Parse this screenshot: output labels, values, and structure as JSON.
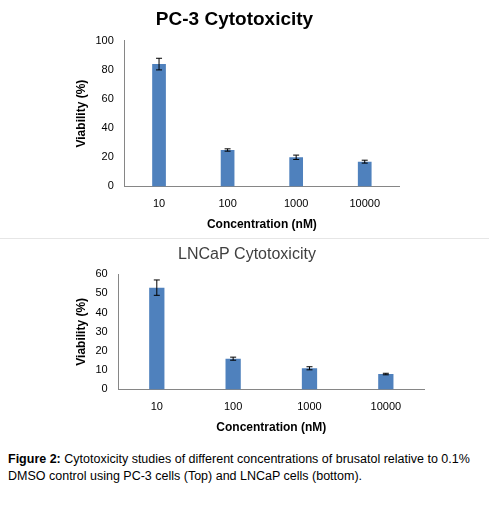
{
  "chart_data": [
    {
      "type": "bar",
      "title": "PC-3 Cytotoxicity",
      "x_label": "Concentration (nM)",
      "y_label": "Viability (%)",
      "categories": [
        "10",
        "100",
        "1000",
        "10000"
      ],
      "values": [
        84,
        25,
        20,
        17
      ],
      "errors": [
        4,
        0.8,
        1.5,
        1
      ],
      "color": "#4f81bd",
      "ylim": [
        0,
        100
      ],
      "yticks": [
        0,
        20,
        40,
        60,
        80,
        100
      ],
      "grid": false
    },
    {
      "type": "bar",
      "title": "LNCaP Cytotoxicity",
      "x_label": "Concentration (nM)",
      "y_label": "Viability (%)",
      "categories": [
        "10",
        "100",
        "1000",
        "10000"
      ],
      "values": [
        53,
        16,
        11,
        8
      ],
      "errors": [
        4,
        0.8,
        0.8,
        0.4
      ],
      "color": "#4f81bd",
      "ylim": [
        0,
        60
      ],
      "yticks": [
        0,
        10,
        20,
        30,
        40,
        50,
        60
      ],
      "grid": false
    }
  ],
  "caption": {
    "label": "Figure 2:",
    "text": "Cytotoxicity studies of different concentrations of brusatol relative to 0.1% DMSO control using PC-3 cells (Top) and LNCaP cells (bottom)."
  }
}
